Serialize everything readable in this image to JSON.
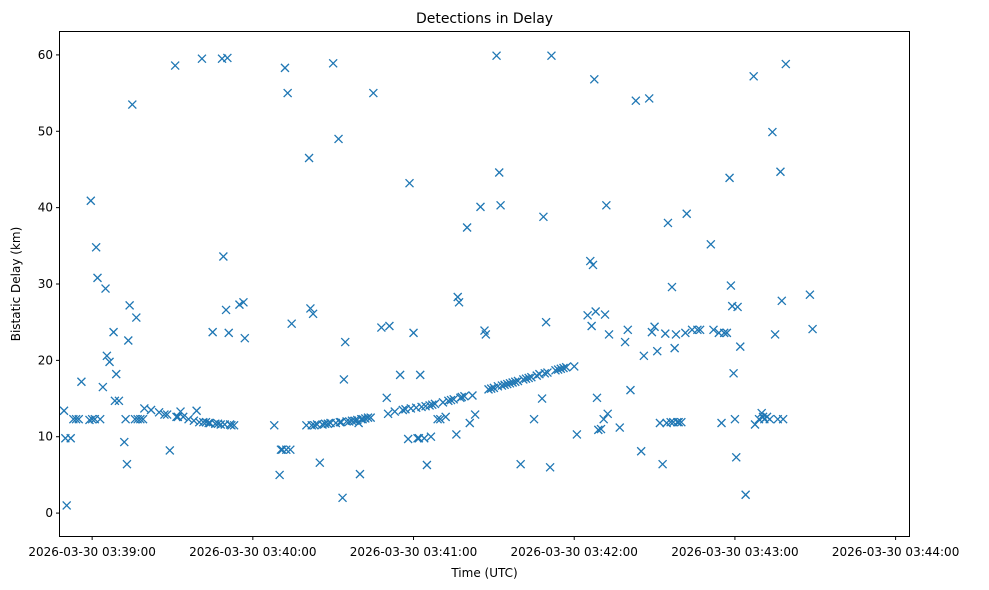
{
  "chart_data": {
    "type": "scatter",
    "title": "Detections in Delay",
    "xlabel": "Time (UTC)",
    "ylabel": "Bistatic Delay (km)",
    "marker": "x",
    "color": "#1f77b4",
    "x_unit": "seconds since 2026-03-30 03:39:00",
    "xlim": [
      -12,
      305
    ],
    "ylim": [
      -3,
      63
    ],
    "x_ticks": [
      {
        "value": 0,
        "label": "2026-03-30 03:39:00"
      },
      {
        "value": 60,
        "label": "2026-03-30 03:40:00"
      },
      {
        "value": 120,
        "label": "2026-03-30 03:41:00"
      },
      {
        "value": 180,
        "label": "2026-03-30 03:42:00"
      },
      {
        "value": 240,
        "label": "2026-03-30 03:43:00"
      },
      {
        "value": 300,
        "label": "2026-03-30 03:44:00"
      }
    ],
    "y_ticks": [
      {
        "value": 0,
        "label": "0"
      },
      {
        "value": 10,
        "label": "10"
      },
      {
        "value": 20,
        "label": "20"
      },
      {
        "value": 30,
        "label": "30"
      },
      {
        "value": 40,
        "label": "40"
      },
      {
        "value": 50,
        "label": "50"
      },
      {
        "value": 60,
        "label": "60"
      }
    ],
    "grid": false,
    "series": [
      {
        "name": "Detections",
        "points": [
          [
            -10.5,
            13.4
          ],
          [
            -10,
            9.8
          ],
          [
            -9.5,
            1.0
          ],
          [
            -8,
            9.8
          ],
          [
            -7,
            12.3
          ],
          [
            -6,
            12.3
          ],
          [
            -5,
            12.3
          ],
          [
            -4,
            17.2
          ],
          [
            -1,
            12.2
          ],
          [
            -0.5,
            40.9
          ],
          [
            0,
            12.3
          ],
          [
            1,
            12.3
          ],
          [
            1.5,
            34.8
          ],
          [
            2,
            30.8
          ],
          [
            3,
            12.3
          ],
          [
            4,
            16.5
          ],
          [
            5,
            29.4
          ],
          [
            5.5,
            20.6
          ],
          [
            6.5,
            19.8
          ],
          [
            8,
            23.7
          ],
          [
            8.5,
            14.7
          ],
          [
            9,
            18.2
          ],
          [
            10,
            14.7
          ],
          [
            12,
            9.3
          ],
          [
            12.5,
            12.3
          ],
          [
            13,
            6.4
          ],
          [
            13.5,
            22.6
          ],
          [
            14,
            27.2
          ],
          [
            15,
            53.5
          ],
          [
            16,
            12.3
          ],
          [
            16.5,
            25.6
          ],
          [
            17,
            12.3
          ],
          [
            18,
            12.3
          ],
          [
            19,
            12.3
          ],
          [
            19.5,
            13.7
          ],
          [
            22,
            13.5
          ],
          [
            25,
            13.2
          ],
          [
            27,
            12.9
          ],
          [
            28,
            12.9
          ],
          [
            29,
            8.2
          ],
          [
            31,
            58.6
          ],
          [
            31.5,
            12.6
          ],
          [
            32,
            12.6
          ],
          [
            33,
            13.3
          ],
          [
            34,
            12.6
          ],
          [
            36,
            12.3
          ],
          [
            38,
            12.1
          ],
          [
            39,
            13.4
          ],
          [
            40,
            11.9
          ],
          [
            41,
            59.5
          ],
          [
            41.5,
            11.9
          ],
          [
            42.5,
            11.9
          ],
          [
            43.5,
            11.8
          ],
          [
            44,
            11.8
          ],
          [
            45,
            23.7
          ],
          [
            46,
            11.7
          ],
          [
            47,
            11.7
          ],
          [
            48,
            11.6
          ],
          [
            48.5,
            59.5
          ],
          [
            49,
            33.6
          ],
          [
            49.5,
            11.6
          ],
          [
            50.5,
            59.6
          ],
          [
            50,
            26.6
          ],
          [
            51,
            23.6
          ],
          [
            51.5,
            11.6
          ],
          [
            52,
            11.5
          ],
          [
            53,
            11.5
          ],
          [
            55,
            27.3
          ],
          [
            56.5,
            27.6
          ],
          [
            57,
            22.9
          ],
          [
            68,
            11.5
          ],
          [
            70,
            5.0
          ],
          [
            70.5,
            8.3
          ],
          [
            71,
            8.3
          ],
          [
            72,
            58.3
          ],
          [
            72.5,
            8.3
          ],
          [
            73,
            55.0
          ],
          [
            74,
            8.3
          ],
          [
            74.5,
            24.8
          ],
          [
            80,
            11.5
          ],
          [
            81,
            46.5
          ],
          [
            81.5,
            26.8
          ],
          [
            82,
            11.5
          ],
          [
            82.5,
            26.1
          ],
          [
            83,
            11.5
          ],
          [
            84,
            11.6
          ],
          [
            85,
            6.6
          ],
          [
            86,
            11.6
          ],
          [
            87,
            11.7
          ],
          [
            88,
            11.7
          ],
          [
            89,
            11.8
          ],
          [
            90,
            58.9
          ],
          [
            91,
            11.8
          ],
          [
            92,
            49.0
          ],
          [
            92.5,
            11.9
          ],
          [
            93,
            11.9
          ],
          [
            93.5,
            2.0
          ],
          [
            94,
            17.5
          ],
          [
            94.5,
            22.4
          ],
          [
            95,
            12.0
          ],
          [
            96,
            12.0
          ],
          [
            97,
            12.1
          ],
          [
            98,
            12.1
          ],
          [
            99,
            12.2
          ],
          [
            99.5,
            11.8
          ],
          [
            100,
            5.1
          ],
          [
            100.5,
            12.3
          ],
          [
            101,
            12.3
          ],
          [
            102,
            12.4
          ],
          [
            103,
            12.5
          ],
          [
            104,
            12.5
          ],
          [
            105,
            55.0
          ],
          [
            108,
            24.3
          ],
          [
            110,
            15.1
          ],
          [
            110.5,
            13.0
          ],
          [
            111,
            24.5
          ],
          [
            113,
            13.3
          ],
          [
            115,
            18.1
          ],
          [
            116,
            13.5
          ],
          [
            117,
            13.6
          ],
          [
            118,
            9.7
          ],
          [
            118.5,
            43.2
          ],
          [
            119,
            13.7
          ],
          [
            120,
            23.6
          ],
          [
            121,
            13.8
          ],
          [
            121.5,
            9.8
          ],
          [
            122,
            9.8
          ],
          [
            122.5,
            18.1
          ],
          [
            123,
            13.9
          ],
          [
            124,
            9.8
          ],
          [
            124.5,
            14.0
          ],
          [
            125,
            6.3
          ],
          [
            126,
            14.1
          ],
          [
            126.5,
            10.0
          ],
          [
            127,
            14.2
          ],
          [
            128,
            14.3
          ],
          [
            129,
            12.3
          ],
          [
            130,
            12.3
          ],
          [
            131,
            14.5
          ],
          [
            132,
            12.6
          ],
          [
            133,
            14.7
          ],
          [
            134,
            14.8
          ],
          [
            135,
            14.9
          ],
          [
            136,
            10.3
          ],
          [
            136.5,
            28.3
          ],
          [
            137,
            27.6
          ],
          [
            137.5,
            15.1
          ],
          [
            138,
            15.2
          ],
          [
            139,
            15.3
          ],
          [
            140,
            37.4
          ],
          [
            141,
            11.8
          ],
          [
            142,
            15.4
          ],
          [
            143,
            12.9
          ],
          [
            145,
            40.1
          ],
          [
            146.5,
            23.9
          ],
          [
            147,
            23.4
          ],
          [
            148,
            16.2
          ],
          [
            149,
            16.3
          ],
          [
            150,
            16.4
          ],
          [
            151,
            59.9
          ],
          [
            151.5,
            16.6
          ],
          [
            152,
            44.6
          ],
          [
            152.5,
            40.3
          ],
          [
            153,
            16.7
          ],
          [
            154,
            16.8
          ],
          [
            155,
            16.9
          ],
          [
            156,
            17.0
          ],
          [
            157,
            17.1
          ],
          [
            158,
            17.2
          ],
          [
            159,
            17.3
          ],
          [
            160,
            6.4
          ],
          [
            161,
            17.5
          ],
          [
            162,
            17.6
          ],
          [
            163,
            17.7
          ],
          [
            164,
            17.8
          ],
          [
            165,
            12.3
          ],
          [
            166,
            18.0
          ],
          [
            167,
            18.2
          ],
          [
            168,
            15.0
          ],
          [
            168.5,
            38.8
          ],
          [
            169,
            18.3
          ],
          [
            169.5,
            25.0
          ],
          [
            170,
            18.4
          ],
          [
            171,
            6.0
          ],
          [
            171.5,
            59.9
          ],
          [
            173,
            18.7
          ],
          [
            174,
            18.8
          ],
          [
            175,
            18.9
          ],
          [
            176,
            19.0
          ],
          [
            177,
            19.1
          ],
          [
            180,
            19.2
          ],
          [
            181,
            10.3
          ],
          [
            185,
            25.9
          ],
          [
            186,
            33.0
          ],
          [
            186.5,
            24.5
          ],
          [
            187,
            32.5
          ],
          [
            187.5,
            56.8
          ],
          [
            188,
            26.4
          ],
          [
            188.5,
            15.1
          ],
          [
            189,
            10.9
          ],
          [
            190,
            11.0
          ],
          [
            191,
            12.3
          ],
          [
            191.5,
            26.0
          ],
          [
            192,
            40.3
          ],
          [
            192.5,
            13.0
          ],
          [
            193,
            23.4
          ],
          [
            197,
            11.2
          ],
          [
            199,
            22.4
          ],
          [
            200,
            24.0
          ],
          [
            201,
            16.1
          ],
          [
            203,
            54.0
          ],
          [
            205,
            8.1
          ],
          [
            206,
            20.6
          ],
          [
            208,
            54.3
          ],
          [
            209,
            23.7
          ],
          [
            210,
            24.4
          ],
          [
            211,
            21.2
          ],
          [
            212,
            11.8
          ],
          [
            213,
            6.4
          ],
          [
            214,
            23.5
          ],
          [
            214.5,
            11.8
          ],
          [
            215,
            38.0
          ],
          [
            216,
            11.9
          ],
          [
            216.5,
            29.6
          ],
          [
            217,
            11.9
          ],
          [
            217.5,
            21.6
          ],
          [
            218,
            23.4
          ],
          [
            218.5,
            11.9
          ],
          [
            219,
            11.9
          ],
          [
            220,
            11.9
          ],
          [
            222,
            39.2
          ],
          [
            221.5,
            23.6
          ],
          [
            224,
            24.0
          ],
          [
            226,
            24.0
          ],
          [
            227,
            24.0
          ],
          [
            231,
            35.2
          ],
          [
            232,
            24.0
          ],
          [
            234,
            23.6
          ],
          [
            235,
            11.8
          ],
          [
            236,
            23.6
          ],
          [
            237,
            23.6
          ],
          [
            238,
            43.9
          ],
          [
            238.5,
            29.8
          ],
          [
            239,
            27.1
          ],
          [
            239.5,
            18.3
          ],
          [
            240,
            12.3
          ],
          [
            240.5,
            7.3
          ],
          [
            241,
            27.0
          ],
          [
            242,
            21.8
          ],
          [
            244,
            2.4
          ],
          [
            247,
            57.2
          ],
          [
            247.5,
            11.6
          ],
          [
            249,
            12.3
          ],
          [
            250,
            13.1
          ],
          [
            250.5,
            12.6
          ],
          [
            251,
            12.3
          ],
          [
            252,
            12.6
          ],
          [
            253,
            12.3
          ],
          [
            254,
            49.9
          ],
          [
            255,
            23.4
          ],
          [
            256,
            12.3
          ],
          [
            257,
            44.7
          ],
          [
            257.5,
            27.8
          ],
          [
            258,
            12.3
          ],
          [
            259,
            58.8
          ],
          [
            268,
            28.6
          ],
          [
            269,
            24.1
          ]
        ]
      }
    ]
  }
}
